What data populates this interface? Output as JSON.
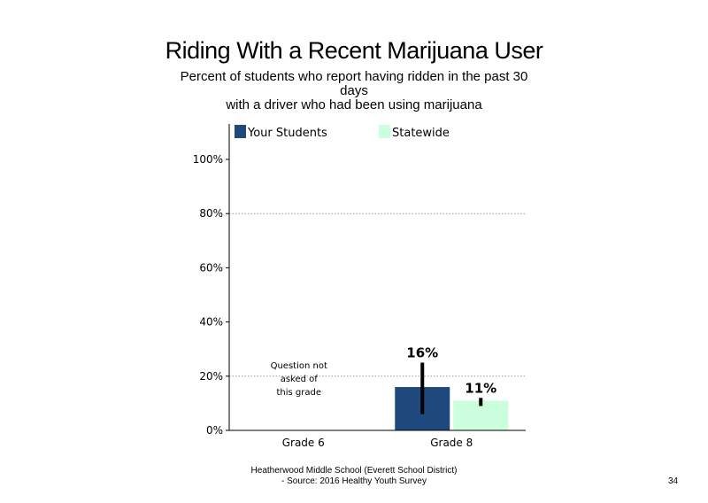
{
  "header": {
    "title": "Riding With a Recent Marijuana User",
    "subtitle_line1": "Percent of students who report having ridden in the past 30",
    "subtitle_line2": "days",
    "subtitle_line3": "with a driver who had been using marijuana"
  },
  "footer": {
    "line1": "Heatherwood Middle School (Everett School District)",
    "line2": "- Source: 2016 Healthy Youth Survey"
  },
  "page_number": "34",
  "colors": {
    "your_students": "#1f497d",
    "statewide": "#ccffdd",
    "error_bar": "#000000",
    "gridline": "#999999"
  },
  "chart_data": {
    "type": "bar",
    "categories": [
      "Grade 6",
      "Grade 8"
    ],
    "series": [
      {
        "name": "Your Students",
        "values": [
          null,
          16
        ],
        "data_labels": [
          "",
          "16%"
        ],
        "error_low": [
          null,
          6
        ],
        "error_high": [
          null,
          25
        ]
      },
      {
        "name": "Statewide",
        "values": [
          null,
          11
        ],
        "data_labels": [
          "",
          "11%"
        ],
        "error_low": [
          null,
          9
        ],
        "error_high": [
          null,
          12
        ]
      }
    ],
    "y_ticks": [
      "0%",
      "20%",
      "40%",
      "60%",
      "80%",
      "100%"
    ],
    "y_tick_values": [
      0,
      20,
      40,
      60,
      80,
      100
    ],
    "ylim": [
      0,
      100
    ],
    "gridlines_at": [
      20,
      80
    ],
    "legend": "top",
    "note": {
      "category": "Grade 6",
      "lines": [
        "Question not",
        "asked of",
        "this grade"
      ]
    }
  }
}
